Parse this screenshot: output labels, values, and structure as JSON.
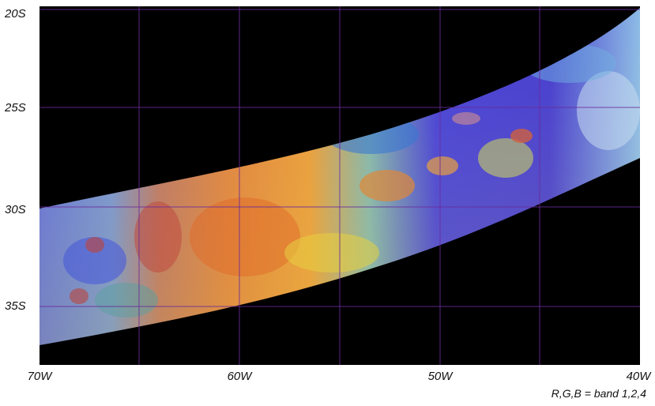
{
  "lat_labels": [
    "20S",
    "25S",
    "30S",
    "35S"
  ],
  "lon_labels": [
    "70W",
    "60W",
    "50W",
    "40W"
  ],
  "caption": "R,G,B = band 1,2,4"
}
